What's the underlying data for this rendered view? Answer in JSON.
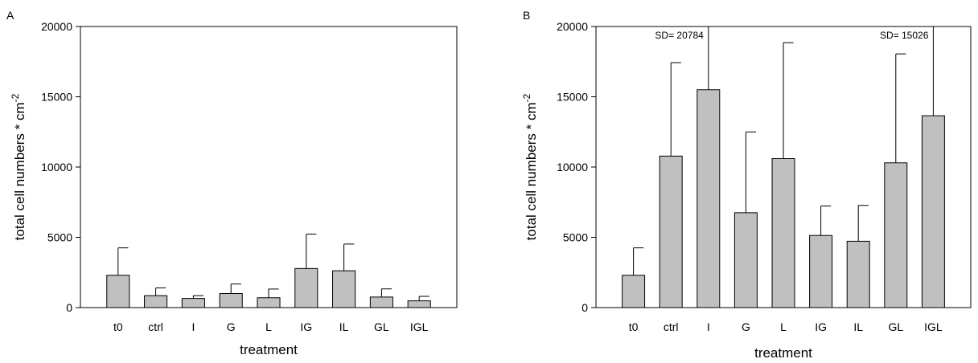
{
  "chart_data": [
    {
      "type": "bar",
      "panel": "A",
      "title": "",
      "xlabel": "treatment",
      "ylabel": "total cell numbers * cm",
      "ylabel_sup": "-2",
      "ylim": [
        0,
        20000
      ],
      "yticks": [
        0,
        5000,
        10000,
        15000,
        20000
      ],
      "categories": [
        "t0",
        "ctrl",
        "I",
        "G",
        "L",
        "IG",
        "IL",
        "GL",
        "IGL"
      ],
      "values": [
        2300,
        850,
        650,
        1000,
        700,
        2780,
        2620,
        750,
        480
      ],
      "errors": [
        1950,
        550,
        200,
        680,
        620,
        2450,
        1900,
        580,
        320
      ],
      "annotations": [],
      "grid": false,
      "bar_color": "#c0c0c0"
    },
    {
      "type": "bar",
      "panel": "B",
      "title": "",
      "xlabel": "treatment",
      "ylabel": "total cell numbers * cm",
      "ylabel_sup": "-2",
      "ylim": [
        0,
        20000
      ],
      "yticks": [
        0,
        5000,
        10000,
        15000,
        20000
      ],
      "categories": [
        "t0",
        "ctrl",
        "I",
        "G",
        "L",
        "IG",
        "IL",
        "GL",
        "IGL"
      ],
      "values": [
        2300,
        10780,
        15500,
        6750,
        10600,
        5130,
        4720,
        10300,
        13650
      ],
      "errors": [
        1950,
        6650,
        20784,
        5750,
        8250,
        2100,
        2550,
        7750,
        15026
      ],
      "annotations": [
        {
          "category": "I",
          "text": "SD= 20784"
        },
        {
          "category": "IGL",
          "text": "SD= 15026"
        }
      ],
      "grid": false,
      "bar_color": "#c0c0c0"
    }
  ]
}
